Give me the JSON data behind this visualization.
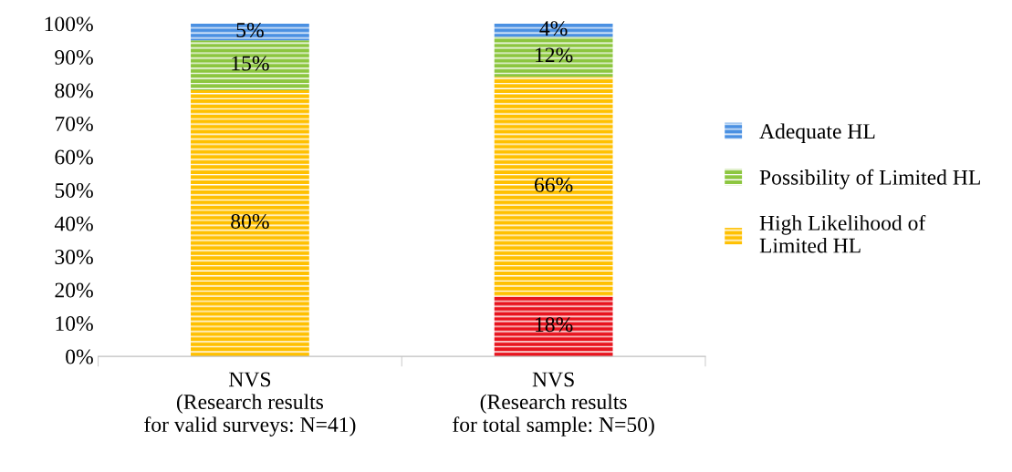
{
  "chart_data": {
    "type": "bar",
    "stacked": true,
    "categories": [
      "NVS\n(Research results\nfor valid surveys: N=41)",
      "NVS\n(Research results\nfor total sample: N=50)"
    ],
    "series": [
      {
        "color": "#e8141e",
        "values": [
          null,
          18
        ],
        "value_labels": [
          null,
          "18%"
        ]
      },
      {
        "name": "High Likelihood of\nLimited HL",
        "color": "#ffc000",
        "values": [
          80,
          66
        ],
        "value_labels": [
          "80%",
          "66%"
        ]
      },
      {
        "name": "Possibility of Limited HL",
        "color": "#8cc63f",
        "values": [
          15,
          12
        ],
        "value_labels": [
          "15%",
          "12%"
        ]
      },
      {
        "name": "Adequate HL",
        "color": "#4a90e2",
        "values": [
          5,
          4
        ],
        "value_labels": [
          "5%",
          "4%"
        ]
      }
    ],
    "ylim": [
      0,
      100
    ],
    "yticks": [
      {
        "value": 0,
        "label": "0%"
      },
      {
        "value": 10,
        "label": "10%"
      },
      {
        "value": 20,
        "label": "20%"
      },
      {
        "value": 30,
        "label": "30%"
      },
      {
        "value": 40,
        "label": "40%"
      },
      {
        "value": 50,
        "label": "50%"
      },
      {
        "value": 60,
        "label": "60%"
      },
      {
        "value": 70,
        "label": "70%"
      },
      {
        "value": 80,
        "label": "80%"
      },
      {
        "value": 90,
        "label": "90%"
      },
      {
        "value": 100,
        "label": "100%"
      }
    ],
    "grid": false,
    "legend": "right"
  }
}
